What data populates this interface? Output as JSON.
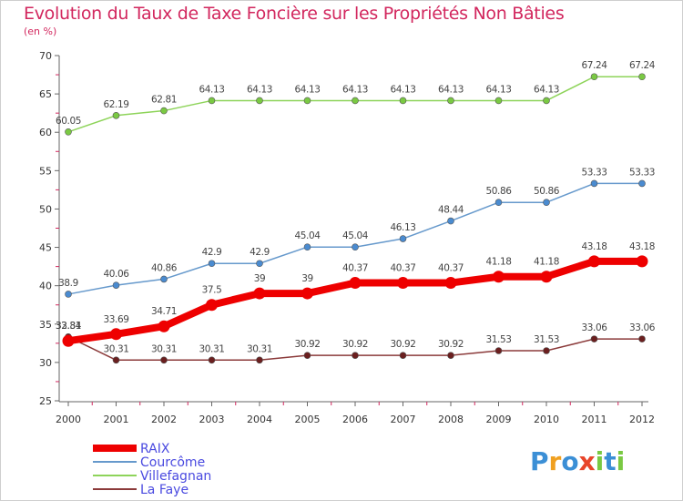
{
  "page": {
    "title": "Evolution du Taux de Taxe Foncière sur les Propriétés Non Bâties",
    "unit": "(en %)"
  },
  "logo": {
    "text": "Proxiti"
  },
  "chart_data": {
    "type": "line",
    "x": [
      "2000",
      "2001",
      "2002",
      "2003",
      "2004",
      "2005",
      "2006",
      "2007",
      "2008",
      "2009",
      "2010",
      "2011",
      "2012"
    ],
    "ylim": [
      25,
      70
    ],
    "yticks": [
      25,
      30,
      35,
      40,
      45,
      50,
      55,
      60,
      65,
      70
    ],
    "grid": false,
    "legend_position": "bottom-left",
    "series": [
      {
        "name": "Villefagnan",
        "color": "#8ed45a",
        "dot": "#7ac943",
        "width": 1.5,
        "radius": 3.5,
        "values": [
          60.05,
          62.19,
          62.81,
          64.13,
          64.13,
          64.13,
          64.13,
          64.13,
          64.13,
          64.13,
          64.13,
          67.24,
          67.24
        ],
        "labels": [
          "60.05",
          "62.19",
          "62.81",
          "64.13",
          "64.13",
          "64.13",
          "64.13",
          "64.13",
          "64.13",
          "64.13",
          "64.13",
          "67.24",
          "67.24"
        ]
      },
      {
        "name": "Courcôme",
        "color": "#6699cc",
        "dot": "#4a8bd0",
        "width": 1.5,
        "radius": 3.5,
        "values": [
          38.9,
          40.06,
          40.86,
          42.9,
          42.9,
          45.04,
          45.04,
          46.13,
          48.44,
          50.86,
          50.86,
          53.33,
          53.33
        ],
        "labels": [
          "38.9",
          "40.06",
          "40.86",
          "42.9",
          "42.9",
          "45.04",
          "45.04",
          "46.13",
          "48.44",
          "50.86",
          "50.86",
          "53.33",
          "53.33"
        ]
      },
      {
        "name": "La Faye",
        "color": "#8b3a3a",
        "dot": "#6b1f1f",
        "width": 1.5,
        "radius": 3.5,
        "values": [
          33.34,
          30.31,
          30.31,
          30.31,
          30.31,
          30.92,
          30.92,
          30.92,
          30.92,
          31.53,
          31.53,
          33.06,
          33.06
        ],
        "labels": [
          "33.34",
          "30.31",
          "30.31",
          "30.31",
          "30.31",
          "30.92",
          "30.92",
          "30.92",
          "30.92",
          "31.53",
          "31.53",
          "33.06",
          "33.06"
        ]
      },
      {
        "name": "RAIX",
        "color": "#ee0000",
        "dot": "#ee0000",
        "width": 8,
        "radius": 6.5,
        "values": [
          32.81,
          33.69,
          34.71,
          37.5,
          39,
          39,
          40.37,
          40.37,
          40.37,
          41.18,
          41.18,
          43.18,
          43.18
        ],
        "labels": [
          "32.81",
          "33.69",
          "34.71",
          "37.5",
          "39",
          "39",
          "40.37",
          "40.37",
          "40.37",
          "41.18",
          "41.18",
          "43.18",
          "43.18"
        ]
      }
    ],
    "legend": [
      "RAIX",
      "Courcôme",
      "Villefagnan",
      "La Faye"
    ]
  }
}
